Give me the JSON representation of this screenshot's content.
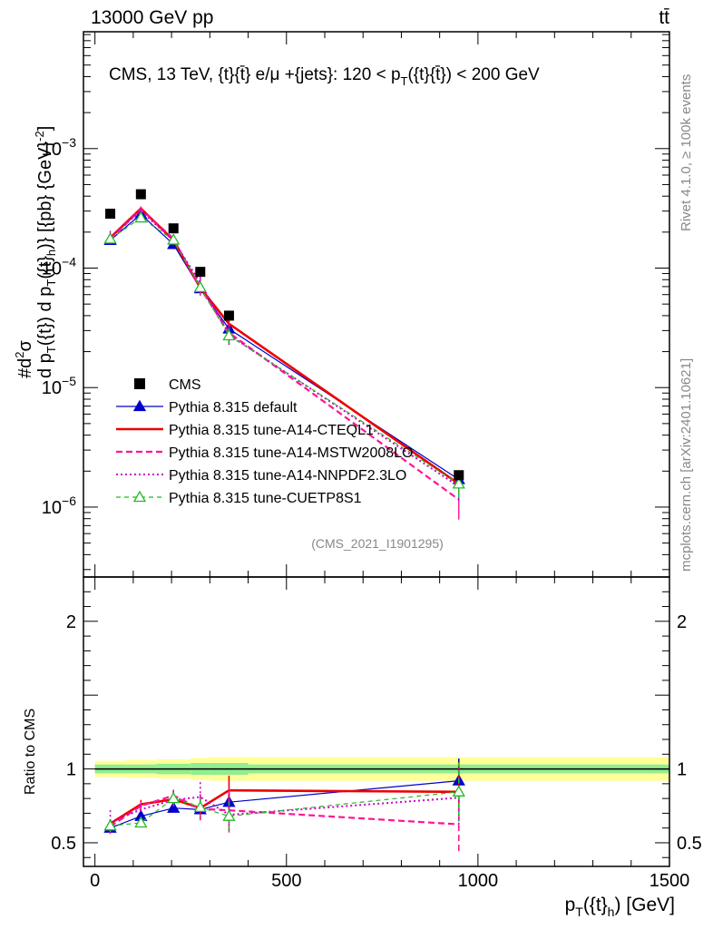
{
  "header": {
    "energy_label": "13000 GeV pp",
    "process_label": "tt̄"
  },
  "side_labels": {
    "rivet": "Rivet 4.1.0, ≥ 100k events",
    "mcplots": "mcplots.cern.ch [arXiv:2401.10621]"
  },
  "chart_data": {
    "type": "line",
    "title": "CMS, 13 TeV, {t}{t̄} e/μ +{jets}: 120 <  p_T({t}{t̄}) < 200 GeV",
    "title_parts": {
      "prefix": "CMS, 13 TeV, {t}{t̄} e/μ +{jets}: 120 <  p",
      "sub": "T",
      "suffix": "({t}{t̄}) < 200 GeV"
    },
    "analysis_id": "(CMS_2021_I1901295)",
    "xlabel": "p_T({t}_h) [GeV]",
    "xlabel_parts": {
      "p": "p",
      "sub1": "T",
      "mid": "({t}",
      "sub2": "h",
      "end": ") [GeV]"
    },
    "ylabel": "#d²σ / d p_T({t}) d p_T({t}_h) [{pb} {GeV}⁻²]",
    "ylabel_parts": {
      "line1": "#",
      "line2": "d",
      "sup": "2",
      "line3": "σ",
      "denom": "d p",
      "denom_sub": "T",
      "denom2": "({t}) d p",
      "denom2_sub": "T",
      "denom3": "({t}",
      "denom3_sub": "h",
      "denom4": ")} [{pb} {GeV}",
      "denom4_sup": "-2",
      "denom5": "]"
    },
    "ratio_ylabel": "Ratio to CMS",
    "xlim": [
      -30,
      1500
    ],
    "ylim_log": [
      2.6e-07,
      0.0095
    ],
    "ratio_ylim": [
      0.34,
      2.3
    ],
    "x_ticks": [
      0,
      500,
      1000,
      1500
    ],
    "y_ticks": [
      {
        "value": 1e-06,
        "base": "10",
        "exp": "−6"
      },
      {
        "value": 1e-05,
        "base": "10",
        "exp": "−5"
      },
      {
        "value": 0.0001,
        "base": "10",
        "exp": "−4"
      },
      {
        "value": 0.001,
        "base": "10",
        "exp": "−3"
      }
    ],
    "ratio_ticks": [
      0.5,
      1,
      2
    ],
    "x": [
      40,
      120,
      205,
      275,
      350,
      950
    ],
    "x_edges": [
      0,
      80,
      160,
      250,
      300,
      400,
      1500
    ],
    "cms": {
      "name": "CMS",
      "values": [
        0.000285,
        0.000415,
        0.000215,
        9.3e-05,
        4e-05,
        1.85e-06
      ],
      "band_inner": [
        0.03,
        0.03,
        0.035,
        0.04,
        0.04,
        0.03
      ],
      "band_outer": [
        0.055,
        0.06,
        0.065,
        0.075,
        0.08,
        0.08
      ]
    },
    "series": [
      {
        "name": "Pythia 8.315 default",
        "color": "#0000cc",
        "style": "solid",
        "marker": "triangle-filled",
        "ratios": [
          0.6,
          0.68,
          0.735,
          0.725,
          0.775,
          0.92
        ],
        "errors": [
          0.03,
          0.025,
          0.03,
          0.03,
          0.06,
          0.15
        ]
      },
      {
        "name": "Pythia 8.315 tune-A14-CTEQL1",
        "color": "#ee0000",
        "style": "solid-thick",
        "marker": "none",
        "ratios": [
          0.63,
          0.76,
          0.795,
          0.735,
          0.855,
          0.845
        ],
        "errors": [
          0.03,
          0.03,
          0.04,
          0.08,
          0.1,
          0.2
        ]
      },
      {
        "name": "Pythia 8.315 tune-A14-MSTW2008LO",
        "color": "#ff1493",
        "style": "dashed",
        "marker": "none",
        "ratios": [
          0.61,
          0.75,
          0.82,
          0.73,
          0.72,
          0.625
        ],
        "errors": [
          0.04,
          0.03,
          0.04,
          0.1,
          0.15,
          0.2
        ]
      },
      {
        "name": "Pythia 8.315 tune-A14-NNPDF2.3LO",
        "color": "#cc00cc",
        "style": "dotted",
        "marker": "none",
        "ratios": [
          0.64,
          0.725,
          0.79,
          0.81,
          0.69,
          0.805
        ],
        "errors": [
          0.08,
          0.03,
          0.06,
          0.1,
          0.12,
          0.2
        ]
      },
      {
        "name": "Pythia 8.315 tune-CUETP8S1",
        "color": "#22bb22",
        "style": "dashed-thin",
        "marker": "triangle-open",
        "ratios": [
          0.615,
          0.635,
          0.8,
          0.74,
          0.68,
          0.845
        ],
        "errors": [
          0.04,
          0.03,
          0.04,
          0.06,
          0.1,
          0.2
        ]
      }
    ]
  }
}
